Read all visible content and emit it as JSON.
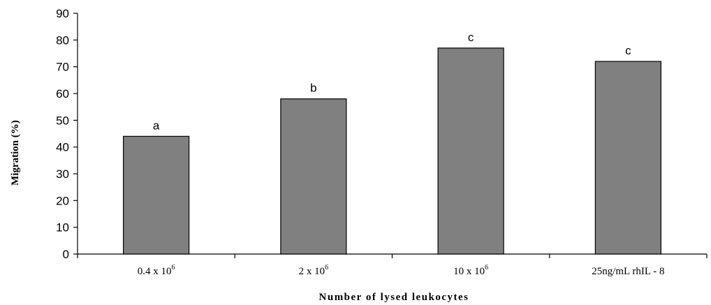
{
  "chart_data": {
    "type": "bar",
    "title": "",
    "xlabel": "Number of lysed leukocytes",
    "ylabel": "Migration (%)",
    "ylim": [
      0,
      90
    ],
    "yticks": [
      0,
      10,
      20,
      30,
      40,
      50,
      60,
      70,
      80,
      90
    ],
    "categories": [
      {
        "base": "0.4 x 10",
        "sup": "6"
      },
      {
        "base": "2 x 10",
        "sup": "6"
      },
      {
        "base": "10 x 10",
        "sup": "6"
      },
      {
        "base": "25ng/mL rhIL - 8",
        "sup": ""
      }
    ],
    "values": [
      44,
      58,
      77,
      72
    ],
    "bar_labels": [
      "a",
      "b",
      "c",
      "c"
    ],
    "grid": false,
    "legend": "none",
    "bar_color": "#808080",
    "bar_edge_color": "#000000"
  }
}
